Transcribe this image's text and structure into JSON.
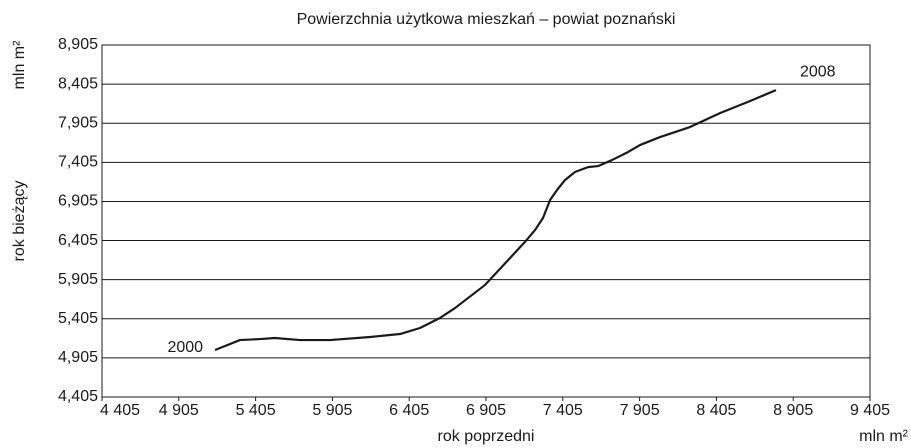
{
  "chart_data": {
    "type": "line",
    "title": "Powierzchnia użytkowa mieszkań – powiat poznański",
    "x_label": "rok poprzedni",
    "y_label": "rok bieżący",
    "x_unit": "mln m²",
    "y_unit": "mln m²",
    "annotations": [
      "2000",
      "2008"
    ],
    "x": [
      5141,
      5303,
      5434,
      5531,
      5694,
      5889,
      6150,
      6345,
      6475,
      6605,
      6703,
      6898,
      7061,
      7158,
      7224,
      7276,
      7322,
      7367,
      7419,
      7484,
      7569,
      7634,
      7725,
      7829,
      7907,
      8038,
      8233,
      8428,
      8623,
      8793
    ],
    "series": [
      {
        "name": "rok bieżący",
        "color": "#1a1a1a",
        "values": [
          5006,
          5133,
          5146,
          5159,
          5133,
          5133,
          5172,
          5210,
          5287,
          5415,
          5542,
          5836,
          6181,
          6386,
          6539,
          6693,
          6923,
          7050,
          7178,
          7281,
          7344,
          7357,
          7434,
          7536,
          7626,
          7728,
          7856,
          8034,
          8188,
          8328
        ]
      }
    ],
    "xlim": [
      4405,
      9405
    ],
    "ylim": [
      4405,
      8905
    ],
    "xticks": [
      {
        "value": 4405,
        "label": "4 405"
      },
      {
        "value": 4905,
        "label": "4 905"
      },
      {
        "value": 5405,
        "label": "5 405"
      },
      {
        "value": 5905,
        "label": "5 905"
      },
      {
        "value": 6405,
        "label": "6 405"
      },
      {
        "value": 6905,
        "label": "6 905"
      },
      {
        "value": 7405,
        "label": "7 405"
      },
      {
        "value": 7905,
        "label": "7 905"
      },
      {
        "value": 8405,
        "label": "8 405"
      },
      {
        "value": 8905,
        "label": "8 905"
      },
      {
        "value": 9405,
        "label": "9 405"
      }
    ],
    "yticks": [
      {
        "value": 4405,
        "label": "4,405"
      },
      {
        "value": 4905,
        "label": "4,905"
      },
      {
        "value": 5405,
        "label": "5,405"
      },
      {
        "value": 5905,
        "label": "5,905"
      },
      {
        "value": 6405,
        "label": "6,405"
      },
      {
        "value": 6905,
        "label": "6,905"
      },
      {
        "value": 7405,
        "label": "7,405"
      },
      {
        "value": 7905,
        "label": "7,905"
      },
      {
        "value": 8405,
        "label": "8,405"
      },
      {
        "value": 8905,
        "label": "8,905"
      }
    ],
    "grid": true
  }
}
